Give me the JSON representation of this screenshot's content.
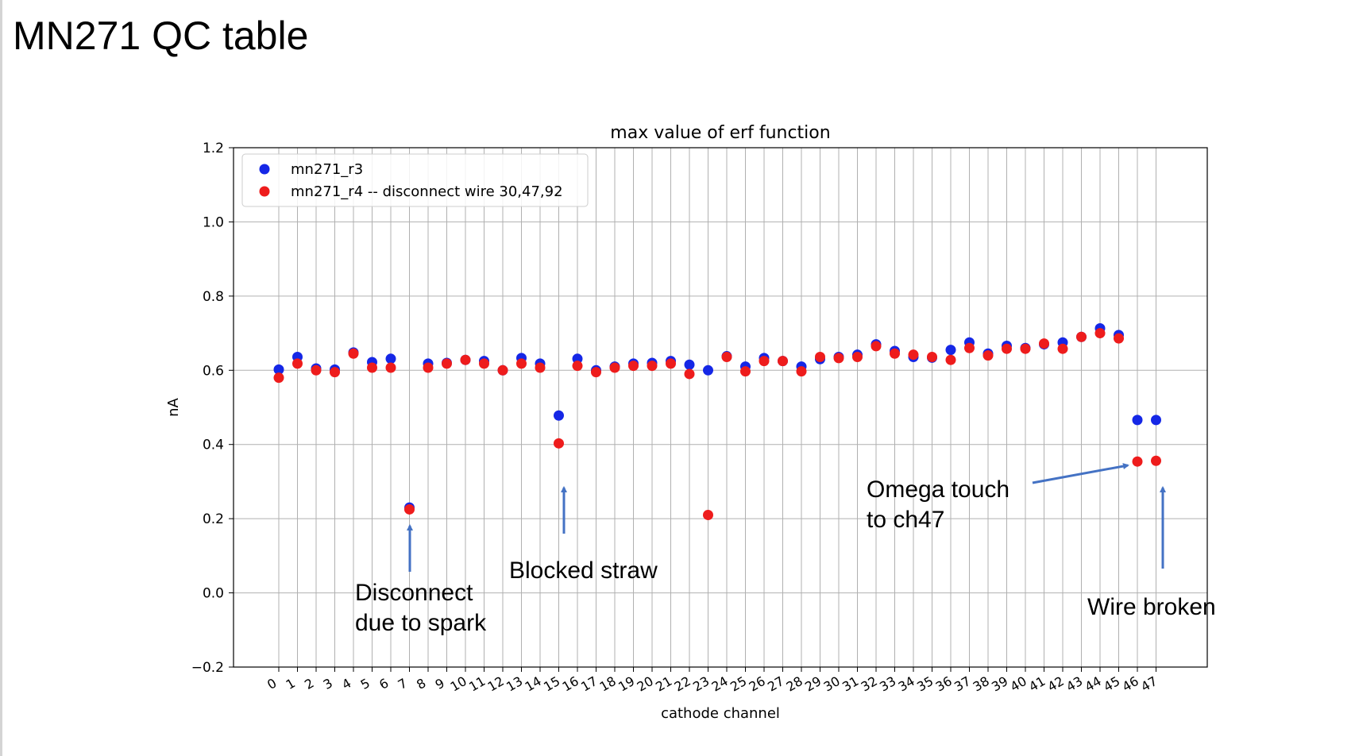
{
  "slide": {
    "title": "MN271 QC table"
  },
  "annotations": {
    "disconnect": [
      "Disconnect",
      "due to spark"
    ],
    "blocked": "Blocked straw",
    "omega": [
      "Omega touch",
      "to ch47"
    ],
    "wire_broken": "Wire broken"
  },
  "colors": {
    "series_r3": "#1527e6",
    "series_r4": "#ee1c1c",
    "arrow": "#4472c4",
    "grid": "#b0b0b0"
  },
  "chart_data": {
    "type": "scatter",
    "title": "max value of erf function",
    "xlabel": "cathode channel",
    "ylabel": "nA",
    "ylim": [
      -0.2,
      1.2
    ],
    "yticks": [
      -0.2,
      0.0,
      0.2,
      0.4,
      0.6,
      0.8,
      1.0,
      1.2
    ],
    "ytick_labels": [
      "−0.2",
      "0.0",
      "0.2",
      "0.4",
      "0.6",
      "0.8",
      "1.0",
      "1.2"
    ],
    "x": [
      0,
      1,
      2,
      3,
      4,
      5,
      6,
      7,
      8,
      9,
      10,
      11,
      12,
      13,
      14,
      15,
      16,
      17,
      18,
      19,
      20,
      21,
      22,
      23,
      24,
      25,
      26,
      27,
      28,
      29,
      30,
      31,
      32,
      33,
      34,
      35,
      36,
      37,
      38,
      39,
      40,
      41,
      42,
      43,
      44,
      45,
      46,
      47
    ],
    "grid": true,
    "legend_position": "top-left",
    "series": [
      {
        "name": "mn271_r3",
        "color": "#1527e6",
        "values": [
          0.602,
          0.636,
          0.605,
          0.602,
          0.648,
          0.622,
          0.631,
          0.23,
          0.618,
          0.62,
          0.628,
          0.625,
          0.6,
          0.633,
          0.618,
          0.478,
          0.631,
          0.6,
          0.61,
          0.618,
          0.62,
          0.625,
          0.615,
          0.6,
          0.638,
          0.61,
          0.633,
          0.625,
          0.61,
          0.63,
          0.636,
          0.642,
          0.67,
          0.652,
          0.636,
          0.634,
          0.655,
          0.675,
          0.645,
          0.666,
          0.66,
          0.67,
          0.675,
          0.69,
          0.713,
          0.695,
          0.466,
          0.466
        ]
      },
      {
        "name": "mn271_r4 -- disconnect wire 30,47,92",
        "color": "#ee1c1c",
        "values": [
          0.58,
          0.618,
          0.6,
          0.595,
          0.645,
          0.607,
          0.607,
          0.225,
          0.607,
          0.618,
          0.628,
          0.618,
          0.6,
          0.618,
          0.607,
          0.403,
          0.612,
          0.595,
          0.607,
          0.612,
          0.612,
          0.618,
          0.59,
          0.21,
          0.636,
          0.597,
          0.625,
          0.625,
          0.597,
          0.636,
          0.633,
          0.636,
          0.665,
          0.645,
          0.642,
          0.636,
          0.628,
          0.66,
          0.64,
          0.658,
          0.658,
          0.672,
          0.658,
          0.69,
          0.7,
          0.686,
          0.354,
          0.356
        ]
      }
    ]
  }
}
